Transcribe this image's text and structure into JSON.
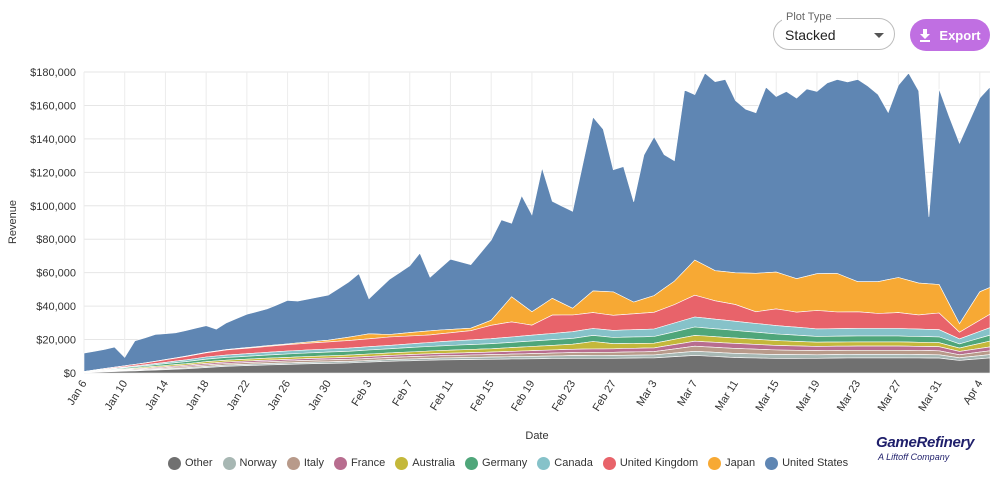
{
  "controls": {
    "plot_type_label": "Plot Type",
    "plot_type_value": "Stacked",
    "export_label": "Export",
    "export_icon": "download-icon"
  },
  "brand": {
    "name": "GameRefinery",
    "tagline": "A Liftoff Company",
    "color": "#1f1f6b"
  },
  "chart_data": {
    "type": "area",
    "stacked": true,
    "title": "",
    "xlabel": "Date",
    "ylabel": "Revenue",
    "ylim": [
      0,
      180000
    ],
    "yticks": [
      0,
      20000,
      40000,
      60000,
      80000,
      100000,
      120000,
      140000,
      160000,
      180000
    ],
    "ytick_labels": [
      "$0",
      "$20,000",
      "$40,000",
      "$60,000",
      "$80,000",
      "$100,000",
      "$120,000",
      "$140,000",
      "$160,000",
      "$180,000"
    ],
    "x_day_range": [
      0,
      89
    ],
    "xtick_labels": [
      "Jan 6",
      "Jan 10",
      "Jan 14",
      "Jan 18",
      "Jan 22",
      "Jan 26",
      "Jan 30",
      "Feb 3",
      "Feb 7",
      "Feb 11",
      "Feb 15",
      "Feb 19",
      "Feb 23",
      "Feb 27",
      "Mar 3",
      "Mar 7",
      "Mar 11",
      "Mar 15",
      "Mar 19",
      "Mar 23",
      "Mar 27",
      "Mar 31",
      "Apr 4"
    ],
    "xtick_days": [
      0,
      4,
      8,
      12,
      16,
      20,
      24,
      28,
      32,
      36,
      40,
      44,
      48,
      52,
      56,
      60,
      64,
      68,
      72,
      76,
      80,
      84,
      88
    ],
    "series_order": [
      "Other",
      "Norway",
      "Italy",
      "France",
      "Australia",
      "Germany",
      "Canada",
      "United Kingdom",
      "Japan",
      "United States"
    ],
    "series": [
      {
        "name": "Other",
        "color": "#707070",
        "points": [
          [
            0,
            200
          ],
          [
            6,
            1500
          ],
          [
            10,
            2500
          ],
          [
            14,
            4000
          ],
          [
            18,
            4800
          ],
          [
            22,
            5500
          ],
          [
            26,
            6000
          ],
          [
            30,
            7000
          ],
          [
            35,
            7800
          ],
          [
            40,
            8200
          ],
          [
            44,
            8500
          ],
          [
            48,
            8800
          ],
          [
            52,
            8800
          ],
          [
            56,
            9000
          ],
          [
            60,
            10500
          ],
          [
            64,
            9200
          ],
          [
            68,
            8700
          ],
          [
            72,
            8800
          ],
          [
            76,
            9000
          ],
          [
            80,
            9000
          ],
          [
            84,
            8900
          ],
          [
            86,
            7500
          ],
          [
            89,
            9000
          ]
        ]
      },
      {
        "name": "Norway",
        "color": "#a7b7b3",
        "points": [
          [
            0,
            100
          ],
          [
            6,
            400
          ],
          [
            12,
            700
          ],
          [
            20,
            900
          ],
          [
            30,
            1000
          ],
          [
            40,
            1300
          ],
          [
            48,
            1600
          ],
          [
            56,
            1800
          ],
          [
            60,
            2500
          ],
          [
            64,
            2500
          ],
          [
            72,
            2100
          ],
          [
            80,
            2100
          ],
          [
            84,
            2000
          ],
          [
            86,
            1600
          ],
          [
            89,
            2000
          ]
        ]
      },
      {
        "name": "Italy",
        "color": "#b89a8a",
        "points": [
          [
            0,
            100
          ],
          [
            6,
            500
          ],
          [
            12,
            900
          ],
          [
            20,
            1100
          ],
          [
            30,
            1300
          ],
          [
            40,
            1500
          ],
          [
            48,
            1800
          ],
          [
            56,
            2000
          ],
          [
            60,
            3000
          ],
          [
            64,
            3000
          ],
          [
            72,
            2500
          ],
          [
            80,
            2500
          ],
          [
            84,
            2400
          ],
          [
            86,
            1800
          ],
          [
            89,
            2300
          ]
        ]
      },
      {
        "name": "France",
        "color": "#b86d8f",
        "points": [
          [
            0,
            100
          ],
          [
            6,
            500
          ],
          [
            12,
            900
          ],
          [
            20,
            1000
          ],
          [
            30,
            1200
          ],
          [
            40,
            1500
          ],
          [
            48,
            2000
          ],
          [
            56,
            2200
          ],
          [
            60,
            3000
          ],
          [
            64,
            3000
          ],
          [
            72,
            2500
          ],
          [
            80,
            2500
          ],
          [
            84,
            2400
          ],
          [
            86,
            2000
          ],
          [
            89,
            2300
          ]
        ]
      },
      {
        "name": "Australia",
        "color": "#c4b83a",
        "points": [
          [
            0,
            100
          ],
          [
            6,
            600
          ],
          [
            12,
            1000
          ],
          [
            20,
            1200
          ],
          [
            30,
            1500
          ],
          [
            40,
            2000
          ],
          [
            48,
            3000
          ],
          [
            50,
            4500
          ],
          [
            52,
            3000
          ],
          [
            56,
            2800
          ],
          [
            60,
            3500
          ],
          [
            64,
            3200
          ],
          [
            72,
            2500
          ],
          [
            80,
            2500
          ],
          [
            84,
            2400
          ],
          [
            86,
            2000
          ],
          [
            89,
            3500
          ]
        ]
      },
      {
        "name": "Germany",
        "color": "#4fa67a",
        "points": [
          [
            0,
            100
          ],
          [
            6,
            800
          ],
          [
            12,
            1500
          ],
          [
            20,
            2000
          ],
          [
            30,
            2500
          ],
          [
            40,
            3000
          ],
          [
            48,
            3500
          ],
          [
            56,
            4000
          ],
          [
            60,
            5000
          ],
          [
            64,
            4500
          ],
          [
            72,
            3500
          ],
          [
            80,
            3500
          ],
          [
            84,
            3500
          ],
          [
            86,
            2500
          ],
          [
            89,
            3500
          ]
        ]
      },
      {
        "name": "Canada",
        "color": "#86c2c9",
        "points": [
          [
            0,
            100
          ],
          [
            6,
            600
          ],
          [
            12,
            1300
          ],
          [
            20,
            1800
          ],
          [
            30,
            2000
          ],
          [
            40,
            3000
          ],
          [
            48,
            4000
          ],
          [
            56,
            4500
          ],
          [
            60,
            6000
          ],
          [
            64,
            5500
          ],
          [
            72,
            4500
          ],
          [
            80,
            4500
          ],
          [
            84,
            4300
          ],
          [
            86,
            3000
          ],
          [
            89,
            4500
          ]
        ]
      },
      {
        "name": "United Kingdom",
        "color": "#e8636a",
        "points": [
          [
            0,
            100
          ],
          [
            6,
            1000
          ],
          [
            10,
            2000
          ],
          [
            14,
            3000
          ],
          [
            18,
            3500
          ],
          [
            22,
            4000
          ],
          [
            26,
            4500
          ],
          [
            30,
            5000
          ],
          [
            34,
            4500
          ],
          [
            38,
            5500
          ],
          [
            40,
            8000
          ],
          [
            42,
            9000
          ],
          [
            44,
            6000
          ],
          [
            46,
            11000
          ],
          [
            48,
            10000
          ],
          [
            50,
            9500
          ],
          [
            52,
            9000
          ],
          [
            56,
            10000
          ],
          [
            58,
            11000
          ],
          [
            60,
            13000
          ],
          [
            62,
            11000
          ],
          [
            64,
            10000
          ],
          [
            66,
            7000
          ],
          [
            68,
            10000
          ],
          [
            70,
            9000
          ],
          [
            72,
            11000
          ],
          [
            74,
            10000
          ],
          [
            76,
            10000
          ],
          [
            78,
            9000
          ],
          [
            80,
            9500
          ],
          [
            82,
            8500
          ],
          [
            84,
            10000
          ],
          [
            86,
            4000
          ],
          [
            89,
            8000
          ]
        ]
      },
      {
        "name": "Japan",
        "color": "#f7a934",
        "points": [
          [
            0,
            0
          ],
          [
            10,
            200
          ],
          [
            20,
            500
          ],
          [
            24,
            1000
          ],
          [
            26,
            2000
          ],
          [
            28,
            3000
          ],
          [
            30,
            1500
          ],
          [
            34,
            2500
          ],
          [
            38,
            1500
          ],
          [
            40,
            3000
          ],
          [
            42,
            15000
          ],
          [
            44,
            8000
          ],
          [
            46,
            10000
          ],
          [
            48,
            4000
          ],
          [
            50,
            13000
          ],
          [
            52,
            14000
          ],
          [
            54,
            7000
          ],
          [
            56,
            10000
          ],
          [
            58,
            14000
          ],
          [
            60,
            21000
          ],
          [
            62,
            18000
          ],
          [
            64,
            19000
          ],
          [
            66,
            23000
          ],
          [
            68,
            22000
          ],
          [
            70,
            20000
          ],
          [
            72,
            22000
          ],
          [
            74,
            23000
          ],
          [
            76,
            18000
          ],
          [
            78,
            19000
          ],
          [
            80,
            21000
          ],
          [
            82,
            19000
          ],
          [
            84,
            17000
          ],
          [
            86,
            5000
          ],
          [
            88,
            17000
          ],
          [
            89,
            16000
          ]
        ]
      },
      {
        "name": "United States",
        "color": "#5f86b3",
        "points": [
          [
            0,
            11000
          ],
          [
            2,
            11500
          ],
          [
            3,
            12000
          ],
          [
            4,
            5000
          ],
          [
            5,
            14000
          ],
          [
            7,
            16000
          ],
          [
            9,
            15000
          ],
          [
            12,
            16000
          ],
          [
            13,
            13000
          ],
          [
            14,
            16000
          ],
          [
            16,
            20000
          ],
          [
            18,
            22000
          ],
          [
            20,
            26000
          ],
          [
            21,
            25000
          ],
          [
            24,
            27000
          ],
          [
            26,
            33000
          ],
          [
            27,
            37000
          ],
          [
            28,
            21000
          ],
          [
            30,
            33000
          ],
          [
            32,
            40000
          ],
          [
            33,
            47000
          ],
          [
            34,
            32000
          ],
          [
            36,
            42000
          ],
          [
            38,
            38000
          ],
          [
            40,
            48000
          ],
          [
            41,
            53000
          ],
          [
            42,
            44000
          ],
          [
            43,
            65000
          ],
          [
            44,
            58000
          ],
          [
            45,
            82000
          ],
          [
            46,
            58000
          ],
          [
            48,
            58000
          ],
          [
            50,
            104000
          ],
          [
            51,
            97000
          ],
          [
            52,
            73000
          ],
          [
            53,
            78000
          ],
          [
            54,
            60000
          ],
          [
            55,
            86000
          ],
          [
            56,
            95000
          ],
          [
            57,
            80000
          ],
          [
            58,
            72000
          ],
          [
            59,
            108000
          ],
          [
            60,
            99000
          ],
          [
            61,
            115000
          ],
          [
            62,
            113000
          ],
          [
            63,
            115000
          ],
          [
            64,
            103000
          ],
          [
            65,
            98000
          ],
          [
            66,
            96000
          ],
          [
            67,
            111000
          ],
          [
            68,
            105000
          ],
          [
            69,
            110000
          ],
          [
            70,
            108000
          ],
          [
            71,
            112000
          ],
          [
            72,
            109000
          ],
          [
            73,
            114000
          ],
          [
            74,
            116000
          ],
          [
            75,
            117000
          ],
          [
            76,
            121000
          ],
          [
            77,
            117000
          ],
          [
            78,
            112000
          ],
          [
            79,
            100000
          ],
          [
            80,
            115000
          ],
          [
            81,
            124000
          ],
          [
            82,
            115000
          ],
          [
            83,
            40000
          ],
          [
            84,
            117000
          ],
          [
            85,
            112000
          ],
          [
            86,
            108000
          ],
          [
            87,
            112000
          ],
          [
            89,
            120000
          ]
        ]
      }
    ],
    "legend_position": "bottom"
  }
}
